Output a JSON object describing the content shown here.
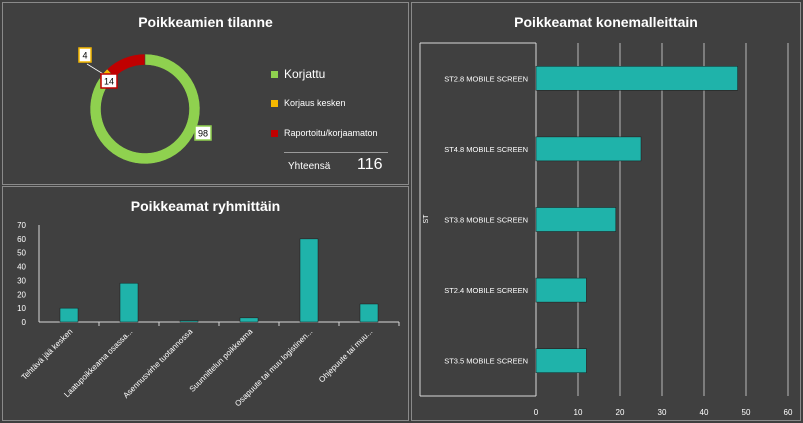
{
  "colors": {
    "background": "#3f3f3f",
    "teal": "#1fb3aa",
    "green": "#8fd14f",
    "yellow": "#f5b800",
    "red": "#c00000",
    "grid": "#d9d9d9"
  },
  "chart_data": [
    {
      "type": "pie",
      "variant": "donut",
      "title": "Poikkeamien tilanne",
      "slices": [
        {
          "label": "Korjattu",
          "value": 98,
          "color": "#8fd14f"
        },
        {
          "label": "Korjaus kesken",
          "value": 4,
          "color": "#f5b800"
        },
        {
          "label": "Raportoitu/korjaamaton",
          "value": 14,
          "color": "#c00000"
        }
      ],
      "data_labels": [
        "98",
        "4",
        "14"
      ],
      "legend_position": "right",
      "total_label": "Yhteensä",
      "total_value": "116"
    },
    {
      "type": "bar",
      "title": "Poikkeamat ryhmittäin",
      "categories": [
        "Tehtävä jää kesken",
        "Laatupoikkeama osassa...",
        "Asennusvirhe tuotannossa",
        "Suunnittelun poikkeama",
        "Osapuute tai muu logistinen...",
        "Ohjepuute tai muu..."
      ],
      "values": [
        10,
        28,
        1,
        3,
        60,
        13
      ],
      "ylim": [
        0,
        70
      ],
      "yticks": [
        "70",
        "60",
        "50",
        "40",
        "30",
        "20",
        "10",
        "0"
      ],
      "xlabel": "",
      "ylabel": "",
      "grid": false
    },
    {
      "type": "bar",
      "orientation": "horizontal",
      "title": "Poikkeamat konemalleittain",
      "categories": [
        "ST2.8 MOBILE SCREEN",
        "ST4.8 MOBILE SCREEN",
        "ST3.8 MOBILE SCREEN",
        "ST2.4 MOBILE SCREEN",
        "ST3.5 MOBILE SCREEN"
      ],
      "values": [
        48,
        25,
        19,
        12,
        12
      ],
      "xlim": [
        0,
        60
      ],
      "xticks": [
        "0",
        "10",
        "20",
        "30",
        "40",
        "50",
        "60"
      ],
      "axis_group_label": "ST",
      "grid": true
    }
  ]
}
